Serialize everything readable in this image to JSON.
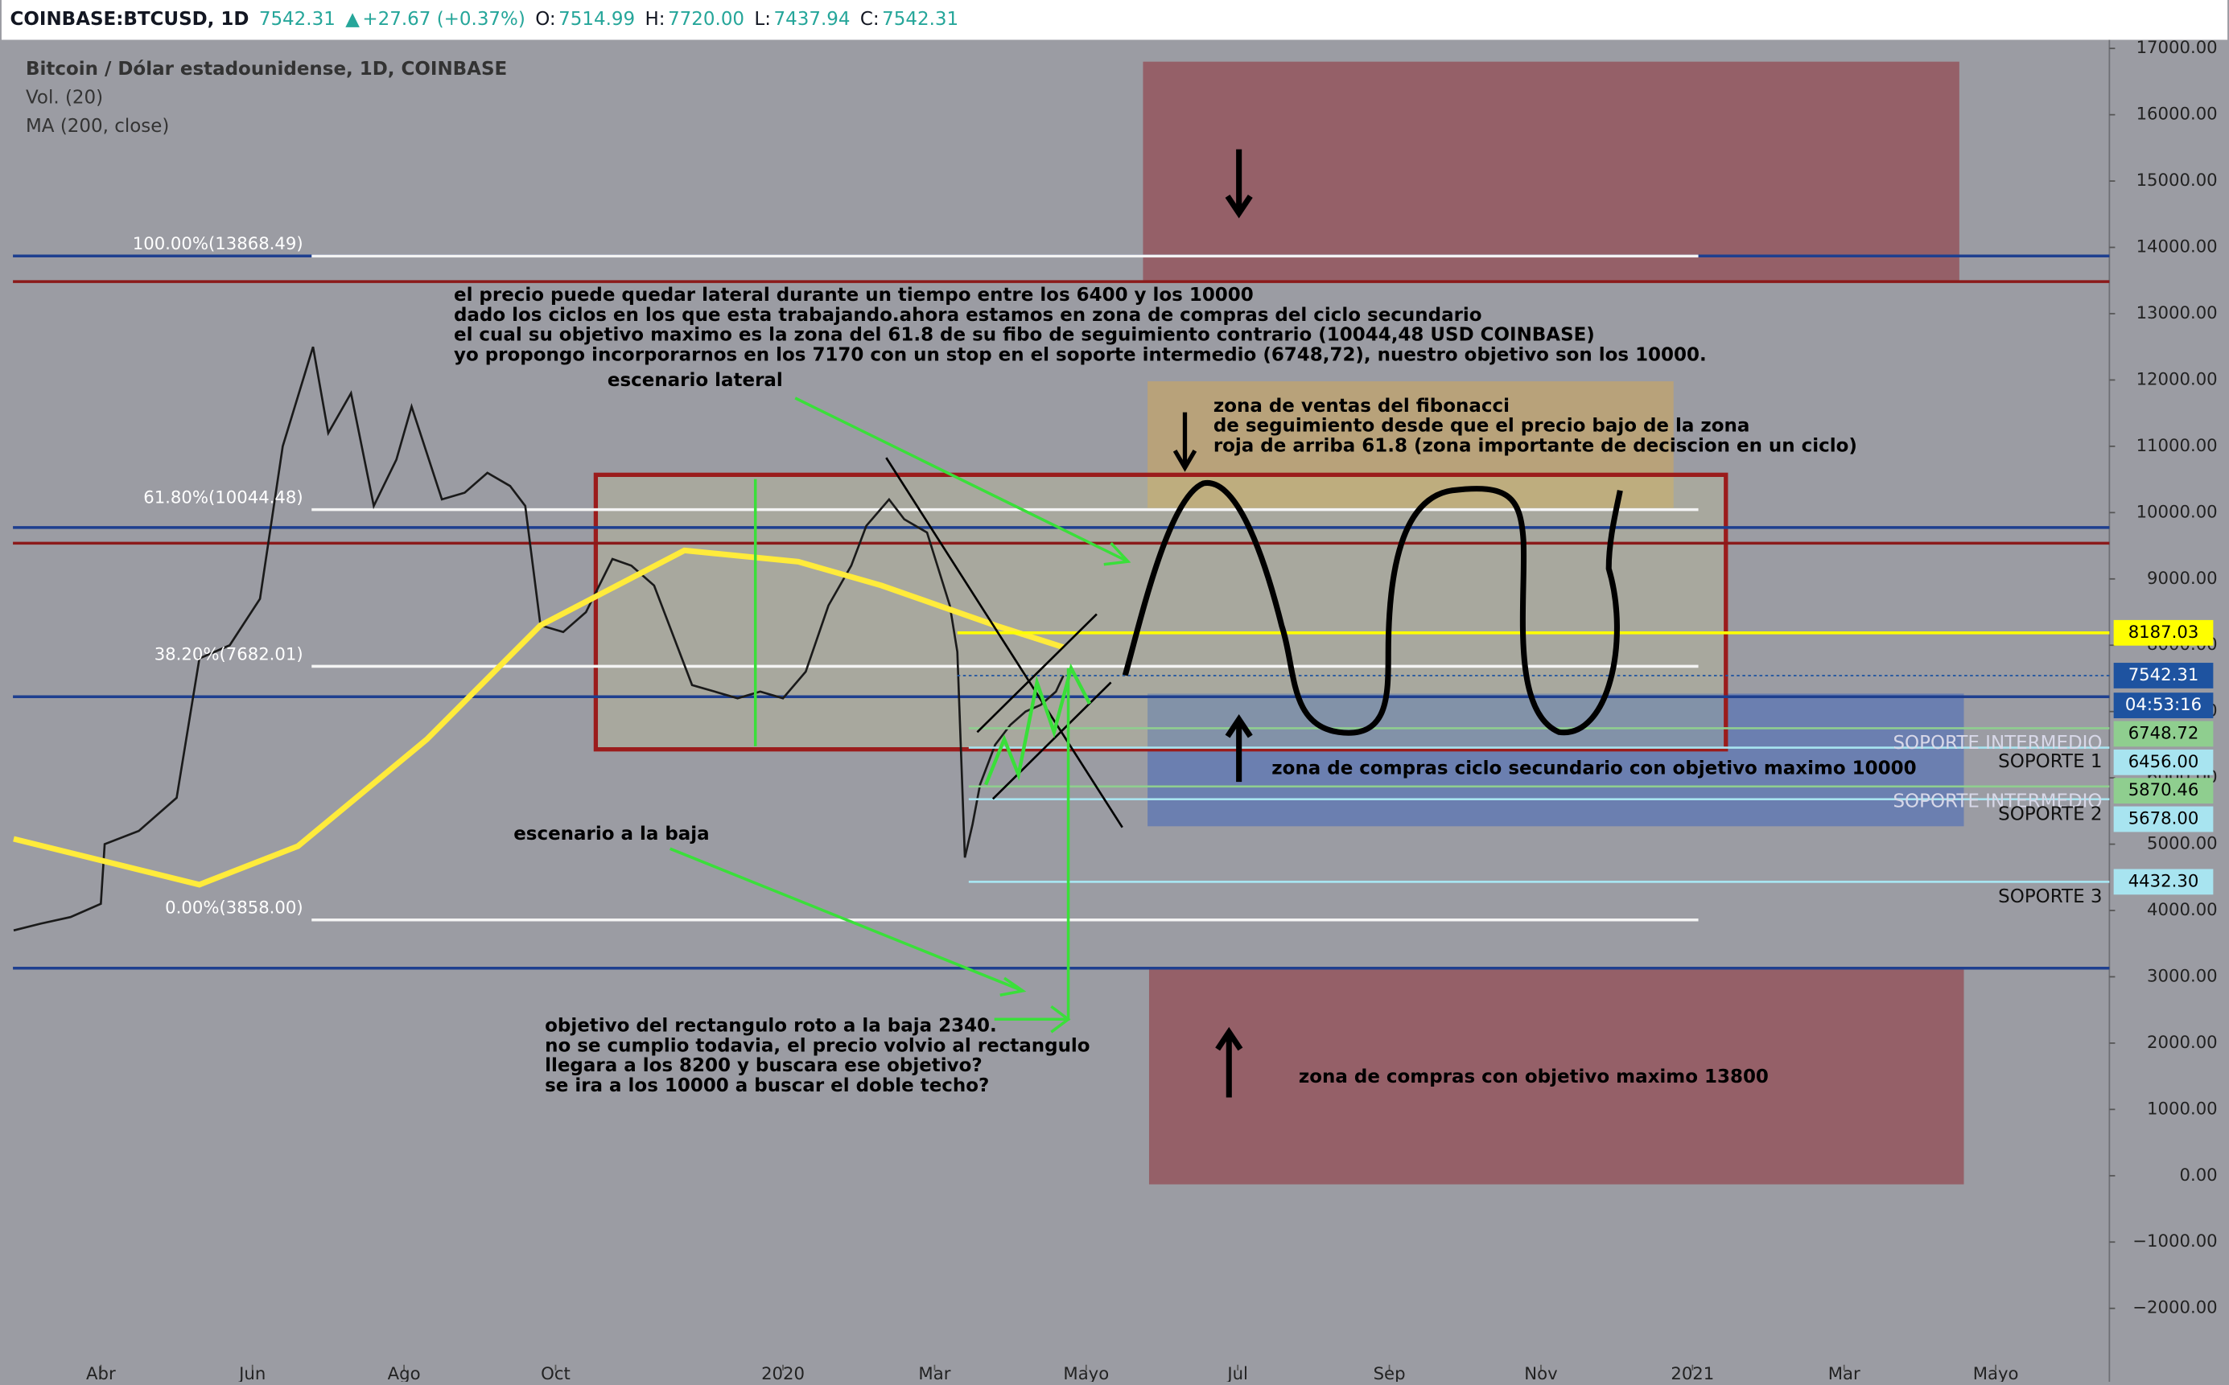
{
  "header": {
    "items": [
      "COINBASE:BTCUSD, 1D",
      "7542.31",
      "▲",
      "+27.67 (+0.37%)",
      "O:",
      "7514.99",
      "H:",
      "7720.00",
      "L:",
      "7437.94",
      "C:",
      "7542.31"
    ]
  },
  "chart_data": {
    "type": "line",
    "title": "Bitcoin / Dólar estadounidense, 1D, COINBASE",
    "indicators": [
      "Vol. (20)",
      "MA (200, close)"
    ],
    "ylim": [
      -2850,
      17430
    ],
    "yticks": [
      {
        "value": -2000,
        "label": "−2000.00"
      },
      {
        "value": -1000,
        "label": "−1000.00"
      },
      {
        "value": 0,
        "label": "0.00"
      },
      {
        "value": 1000,
        "label": "1000.00"
      },
      {
        "value": 2000,
        "label": "2000.00"
      },
      {
        "value": 3000,
        "label": "3000.00"
      },
      {
        "value": 4000,
        "label": "4000.00"
      },
      {
        "value": 5000,
        "label": "5000.00"
      },
      {
        "value": 6000,
        "label": "6000.00"
      },
      {
        "value": 7000,
        "label": "7000.00"
      },
      {
        "value": 8000,
        "label": "8000.00"
      },
      {
        "value": 9000,
        "label": "9000.00"
      },
      {
        "value": 10000,
        "label": "10000.00"
      },
      {
        "value": 11000,
        "label": "11000.00"
      },
      {
        "value": 12000,
        "label": "12000.00"
      },
      {
        "value": 13000,
        "label": "13000.00"
      },
      {
        "value": 14000,
        "label": "14000.00"
      },
      {
        "value": 15000,
        "label": "15000.00"
      },
      {
        "value": 16000,
        "label": "16000.00"
      },
      {
        "value": 17000,
        "label": "17000.00"
      }
    ],
    "xlim": [
      -1.16,
      26.5
    ],
    "xticks": [
      {
        "value": 0,
        "label": "Abr"
      },
      {
        "value": 2,
        "label": "Jun"
      },
      {
        "value": 4,
        "label": "Ago"
      },
      {
        "value": 6,
        "label": "Oct"
      },
      {
        "value": 9,
        "label": "2020"
      },
      {
        "value": 11,
        "label": "Mar"
      },
      {
        "value": 13,
        "label": "Mayo"
      },
      {
        "value": 15,
        "label": "Jul"
      },
      {
        "value": 17,
        "label": "Sep"
      },
      {
        "value": 19,
        "label": "Nov"
      },
      {
        "value": 21,
        "label": "2021"
      },
      {
        "value": 23,
        "label": "Mar"
      },
      {
        "value": 25,
        "label": "Mayo"
      }
    ],
    "series": [
      {
        "name": "Bitcoin / Dólar estadounidense, 1D, COINBASE",
        "color": "#1a1a1a",
        "x": [
          -1.15,
          -0.8,
          -0.4,
          0,
          0.05,
          0.5,
          1,
          1.3,
          1.7,
          2.1,
          2.4,
          2.8,
          3.0,
          3.3,
          3.6,
          3.9,
          4.1,
          4.5,
          4.8,
          5.1,
          5.4,
          5.6,
          5.8,
          6.1,
          6.4,
          6.75,
          7.0,
          7.3,
          7.8,
          8.1,
          8.4,
          8.7,
          9.0,
          9.3,
          9.6,
          9.9,
          10.1,
          10.4,
          10.6,
          10.9,
          11.2,
          11.3,
          11.4,
          11.5,
          11.6,
          11.8,
          12.0,
          12.2,
          12.4,
          12.6,
          12.7
        ],
        "values": [
          3700,
          3800,
          3900,
          4100,
          5000,
          5200,
          5700,
          7800,
          8000,
          8700,
          11000,
          12500,
          11200,
          11800,
          10100,
          10800,
          11600,
          10200,
          10300,
          10600,
          10400,
          10100,
          8300,
          8200,
          8500,
          9300,
          9200,
          8900,
          7400,
          7300,
          7200,
          7300,
          7200,
          7600,
          8600,
          9200,
          9800,
          10200,
          9900,
          9700,
          8600,
          7900,
          4800,
          5300,
          5900,
          6500,
          6800,
          7000,
          7100,
          7300,
          7542.31
        ]
      },
      {
        "name": "MA (200, close)",
        "color": "#ffeb3b",
        "x": [
          -1.15,
          1.3,
          2.6,
          4.3,
          5.8,
          7.7,
          9.2,
          10.3,
          11.8,
          12.7
        ],
        "values": [
          5080,
          4390,
          4970,
          6580,
          8300,
          9430,
          9260,
          8900,
          8300,
          7970
        ]
      }
    ],
    "fib_levels": [
      {
        "value": 13868.49,
        "label": "100.00%(13868.49)"
      },
      {
        "value": 10044.48,
        "label": "61.80%(10044.48)"
      },
      {
        "value": 7682.01,
        "label": "38.20%(7682.01)"
      },
      {
        "value": 3858.0,
        "label": "0.00%(3858.00)"
      }
    ],
    "price_labels": [
      {
        "value": 8187.03,
        "label": "8187.03",
        "color": "#ffff00"
      },
      {
        "value": 7542.31,
        "label": "7542.31",
        "color": "#1e53a0"
      },
      {
        "value": 6748.72,
        "label": "6748.72",
        "color": "#8fce8f"
      },
      {
        "value": 6456.0,
        "label": "6456.00",
        "color": "#a8e4f0"
      },
      {
        "value": 5870.46,
        "label": "5870.46",
        "color": "#8fce8f"
      },
      {
        "value": 5678.0,
        "label": "5678.00",
        "color": "#a8e4f0"
      },
      {
        "value": 4432.3,
        "label": "4432.30",
        "color": "#a8e4f0"
      }
    ],
    "countdown": "04:53:16",
    "hlines": [
      {
        "value": 13870,
        "color": "#1e3f8f"
      },
      {
        "value": 9775,
        "color": "#1e3f8f"
      },
      {
        "value": 7224,
        "color": "#1e3f8f"
      },
      {
        "value": 3130,
        "color": "#1e3f8f"
      },
      {
        "value": 13483,
        "color": "#8b1a1a"
      },
      {
        "value": 9539,
        "color": "#8b1a1a"
      }
    ],
    "zones": [
      {
        "top": 16800,
        "bottom": 13480,
        "x0": 13.75,
        "x1": 24.52,
        "color": "#956068"
      },
      {
        "top": 11980,
        "bottom": 10070,
        "x0": 13.81,
        "x1": 20.75,
        "color": "#b8a27a"
      },
      {
        "top": 7270,
        "bottom": 5270,
        "x0": 13.81,
        "x1": 24.58,
        "color": "#6b7fb0"
      },
      {
        "top": 3130,
        "bottom": -130,
        "x0": 13.83,
        "x1": 24.58,
        "color": "#956068"
      }
    ],
    "range_box": {
      "top": 10570,
      "bottom": 6430,
      "x0": 6.53,
      "x1": 21.44
    },
    "annotations": [
      [
        "el precio puede quedar lateral durante un tiempo entre los 6400 y los 10000",
        "dado los ciclos en los que esta trabajando.ahora estamos en zona de compras del ciclo secundario",
        "el cual su objetivo maximo es la zona del 61.8 de su fibo de seguimiento contrario (10044,48 USD COINBASE)",
        "yo propongo incorporarnos en los 7170 con un stop en el soporte intermedio (6748,72), nuestro objetivo son los 10000."
      ],
      [
        "escenario lateral"
      ],
      [
        "zona de ventas del fibonacci",
        "de seguimiento desde que el precio bajo de la zona",
        "roja de arriba 61.8 (zona importante de deciscion en un ciclo)"
      ],
      [
        "zona de compras ciclo secundario con objetivo maximo 10000"
      ],
      [
        "escenario a la baja"
      ],
      [
        "objetivo del rectangulo roto a la baja 2340.",
        "no se cumplio todavia, el precio volvio al rectangulo",
        "llegara a los 8200 y buscara ese objetivo?",
        "se ira a los 10000 a buscar el doble techo?"
      ],
      [
        "zona de compras con objetivo maximo 13800"
      ]
    ],
    "supports": [
      "SOPORTE INTERMEDIO",
      "SOPORTE 1",
      "SOPORTE INTERMEDIO",
      "SOPORTE 2",
      "SOPORTE 3"
    ]
  }
}
